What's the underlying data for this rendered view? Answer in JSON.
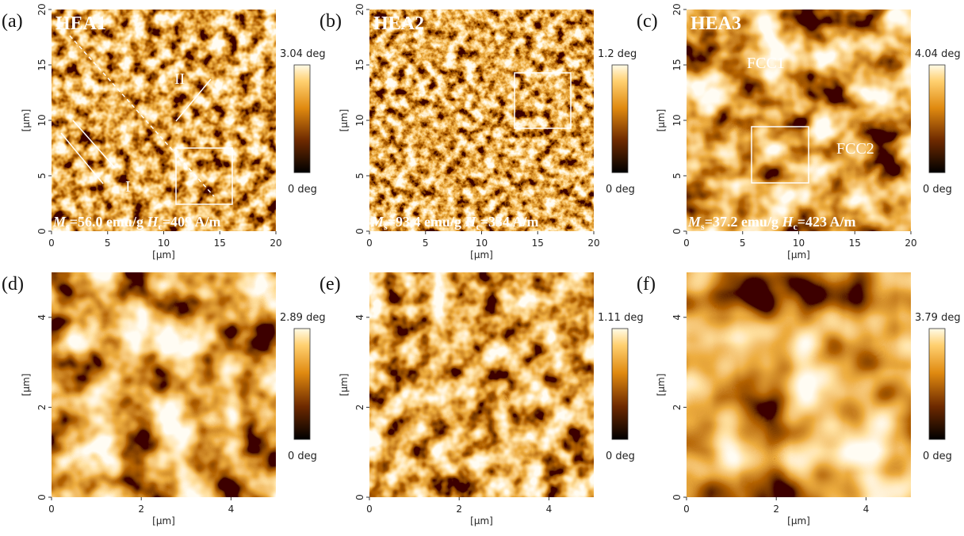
{
  "panels": [
    {
      "label": "(a)",
      "title": "HEA1",
      "xlim": [
        0,
        20
      ],
      "ylim": [
        0,
        20
      ],
      "xticks": [
        0,
        5,
        10,
        15,
        20
      ],
      "yticks": [
        0,
        5,
        10,
        15,
        20
      ],
      "xlabel": "[μm]",
      "ylabel": "[μm]",
      "colorbar_max": "3.04 deg",
      "colorbar_min": "0 deg",
      "caption": [
        "M",
        "s",
        "=56.0 emu/g ",
        "H",
        "c",
        "=409 A/m"
      ],
      "markers": [
        "I",
        "II"
      ]
    },
    {
      "label": "(b)",
      "title": "HEA2",
      "xlim": [
        0,
        20
      ],
      "ylim": [
        0,
        20
      ],
      "xticks": [
        0,
        5,
        10,
        15,
        20
      ],
      "yticks": [
        0,
        5,
        10,
        15,
        20
      ],
      "xlabel": "[μm]",
      "ylabel": "[μm]",
      "colorbar_max": "1.2 deg",
      "colorbar_min": "0 deg",
      "caption": [
        "M",
        "s",
        "=93.4 emu/g ",
        "H",
        "c",
        "=334 A/m"
      ]
    },
    {
      "label": "(c)",
      "title": "HEA3",
      "xlim": [
        0,
        20
      ],
      "ylim": [
        0,
        20
      ],
      "xticks": [
        0,
        5,
        10,
        15,
        20
      ],
      "yticks": [
        0,
        5,
        10,
        15,
        20
      ],
      "xlabel": "[μm]",
      "ylabel": "[μm]",
      "colorbar_max": "4.04 deg",
      "colorbar_min": "0 deg",
      "caption": [
        "M",
        "s",
        "=37.2 emu/g ",
        "H",
        "c",
        "=423 A/m"
      ],
      "markers": [
        "FCC1",
        "FCC2"
      ]
    },
    {
      "label": "(d)",
      "xlim": [
        0,
        5
      ],
      "ylim": [
        0,
        5
      ],
      "xticks": [
        0,
        2,
        4
      ],
      "yticks": [
        0,
        2,
        4
      ],
      "xlabel": "[μm]",
      "ylabel": "[μm]",
      "colorbar_max": "2.89 deg",
      "colorbar_min": "0 deg"
    },
    {
      "label": "(e)",
      "xlim": [
        0,
        5
      ],
      "ylim": [
        0,
        5
      ],
      "xticks": [
        0,
        2,
        4
      ],
      "yticks": [
        0,
        2,
        4
      ],
      "xlabel": "[μm]",
      "ylabel": "[μm]",
      "colorbar_max": "1.11 deg",
      "colorbar_min": "0 deg"
    },
    {
      "label": "(f)",
      "xlim": [
        0,
        5
      ],
      "ylim": [
        0,
        5
      ],
      "xticks": [
        0,
        2,
        4
      ],
      "yticks": [
        0,
        2,
        4
      ],
      "xlabel": "[μm]",
      "ylabel": "[μm]",
      "colorbar_max": "3.79 deg",
      "colorbar_min": "0 deg"
    }
  ]
}
